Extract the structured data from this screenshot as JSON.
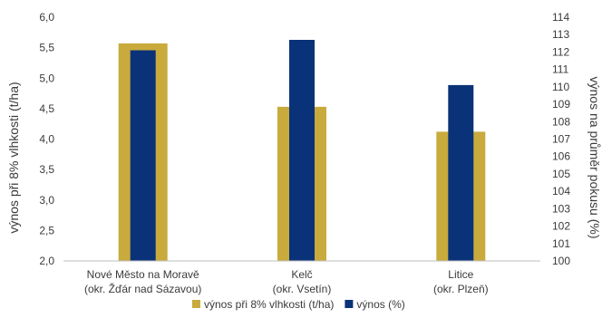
{
  "chart_data": {
    "type": "bar",
    "categories": [
      [
        "Nové Město na Moravě",
        "(okr. Žďár nad Sázavou)"
      ],
      [
        "Kelč",
        "(okr. Vsetín)"
      ],
      [
        "Litice",
        "(okr. Plzeň)"
      ]
    ],
    "series": [
      {
        "name": "výnos při 8% vlhkosti (t/ha)",
        "axis": "left",
        "color": "#c9aa3c",
        "values": [
          5.57,
          4.53,
          4.12
        ]
      },
      {
        "name": "výnos (%)",
        "axis": "right",
        "color": "#0a3278",
        "values": [
          112.1,
          112.7,
          110.1
        ]
      }
    ],
    "y_left": {
      "label": "výnos při 8% vlhkosti (t/ha)",
      "min": 2.0,
      "max": 6.0,
      "step": 0.5,
      "decimals": 1
    },
    "y_right": {
      "label": "výnos na průměr pokusu (%)",
      "min": 100,
      "max": 114,
      "step": 1,
      "decimals": 0
    },
    "grid": false,
    "legend_position": "bottom"
  }
}
